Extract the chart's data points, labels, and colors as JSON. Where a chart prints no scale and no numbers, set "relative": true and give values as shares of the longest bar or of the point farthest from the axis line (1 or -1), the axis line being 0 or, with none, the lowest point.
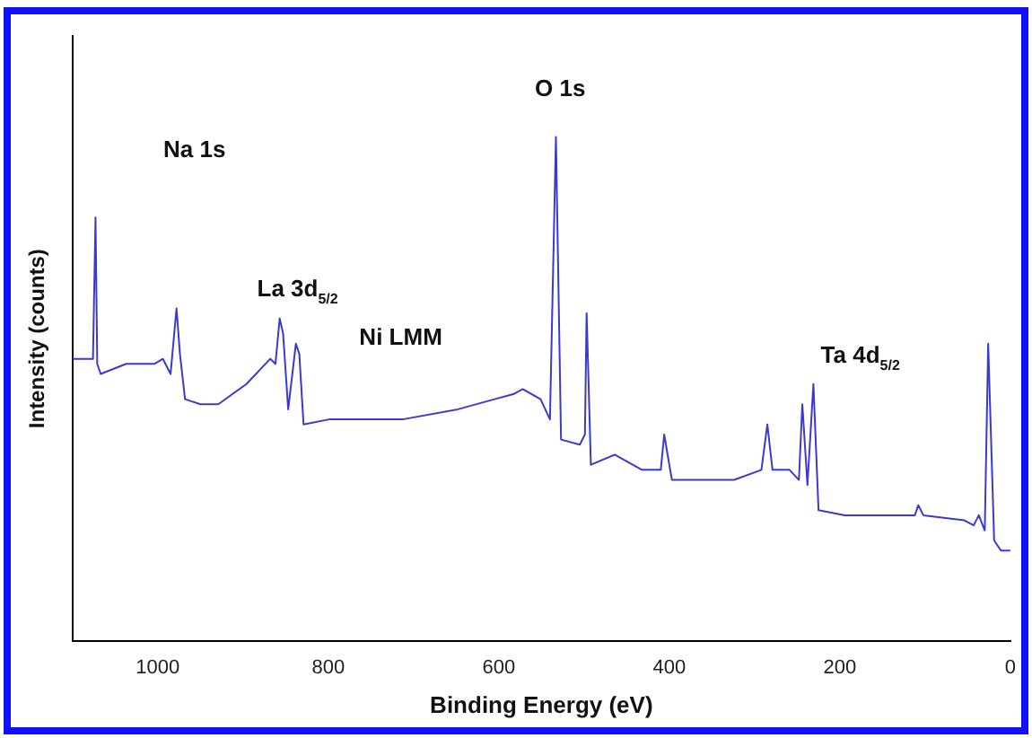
{
  "chart_data": {
    "type": "line",
    "xlabel": "Binding Energy (eV)",
    "ylabel": "Intensity (counts)",
    "relative": true,
    "xlim": [
      1100,
      0
    ],
    "xticks": [
      1000,
      800,
      600,
      400,
      200,
      0
    ],
    "tick_labels": "x",
    "grid": false,
    "legend": false,
    "marker": "none",
    "line_style": "solid",
    "series": [
      {
        "color": "#3a3ad0",
        "x": [
          1100,
          1080,
          1076,
          1073,
          1071,
          1067,
          1037,
          1004,
          994,
          985,
          978,
          974,
          968,
          950,
          929,
          896,
          868,
          862,
          857,
          853,
          847,
          838,
          834,
          829,
          799,
          713,
          648,
          605,
          583,
          572,
          551,
          540,
          533,
          527,
          505,
          499,
          497,
          492,
          464,
          432,
          410,
          406,
          397,
          324,
          292,
          285,
          279,
          259,
          248,
          244,
          238,
          231,
          225,
          194,
          112,
          108,
          102,
          54,
          43,
          37,
          30,
          26,
          19,
          11,
          0
        ],
        "values": [
          0.56,
          0.56,
          0.56,
          0.84,
          0.55,
          0.53,
          0.55,
          0.55,
          0.56,
          0.53,
          0.66,
          0.57,
          0.48,
          0.47,
          0.47,
          0.51,
          0.56,
          0.55,
          0.64,
          0.61,
          0.46,
          0.59,
          0.57,
          0.43,
          0.44,
          0.44,
          0.46,
          0.48,
          0.49,
          0.5,
          0.48,
          0.44,
          1.0,
          0.4,
          0.39,
          0.41,
          0.65,
          0.35,
          0.37,
          0.34,
          0.34,
          0.41,
          0.32,
          0.32,
          0.34,
          0.43,
          0.34,
          0.34,
          0.32,
          0.47,
          0.31,
          0.51,
          0.26,
          0.25,
          0.25,
          0.27,
          0.25,
          0.24,
          0.23,
          0.25,
          0.22,
          0.59,
          0.2,
          0.18,
          0.18
        ]
      }
    ],
    "annotations": [
      "Na 1s",
      "La 3d$_{5/2}$",
      "Ni LMM",
      "O 1s",
      "Ta 4d$_{5/2}$"
    ]
  }
}
